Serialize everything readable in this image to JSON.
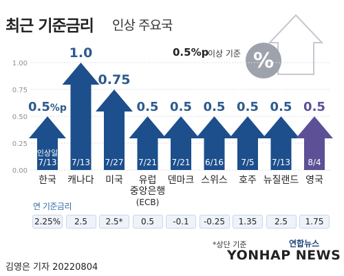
{
  "header": {
    "title_main": "최근 기준금리",
    "title_sub": "인상 주요국",
    "basis_strong": "0.5%p",
    "basis_rest": "이상 기준"
  },
  "labels": {
    "date_caption": "인상일",
    "policy_rate_label": "연 기준금리",
    "footnote": "*상단 기준",
    "byline": "김영은 기자  20220804",
    "agency_small": "연합뉴스",
    "agency_big": "YONHAP NEWS"
  },
  "icons": [
    "percent-badge-icon",
    "up-arrow-icon"
  ],
  "colors": {
    "bar_blue": "#1c4f8c",
    "bar_purple": "#5d5096",
    "value_blue": "#2c5a8e",
    "value_purple": "#5d5096",
    "rate_box_bg": "#eef3fa",
    "grid": "#d7dde6"
  },
  "chart_data": {
    "type": "bar",
    "title": "최근 기준금리 인상 주요국",
    "categories": [
      "한국",
      "캐나다",
      "미국",
      "유럽 중앙은행 (ECB)",
      "덴마크",
      "스위스",
      "호주",
      "뉴질랜드",
      "영국"
    ],
    "values": [
      0.5,
      1.0,
      0.75,
      0.5,
      0.5,
      0.5,
      0.5,
      0.5,
      0.5
    ],
    "value_labels": [
      "0.5%p",
      "1.0",
      "0.75",
      "0.5",
      "0.5",
      "0.5",
      "0.5",
      "0.5",
      "0.5"
    ],
    "dates": [
      "7/13",
      "7/13",
      "7/27",
      "7/21",
      "7/21",
      "6/16",
      "7/5",
      "7/13",
      "8/4"
    ],
    "policy_rates": [
      "2.25%",
      "2.5",
      "2.5*",
      "0.5",
      "-0.1",
      "-0.25",
      "1.35",
      "2.5",
      "1.75"
    ],
    "yticks": [
      "0.00",
      "0.25",
      "0.50",
      "0.75",
      "1.00"
    ],
    "ylim": [
      0,
      1.0
    ],
    "grid": true,
    "ylabel": "",
    "xlabel": ""
  }
}
